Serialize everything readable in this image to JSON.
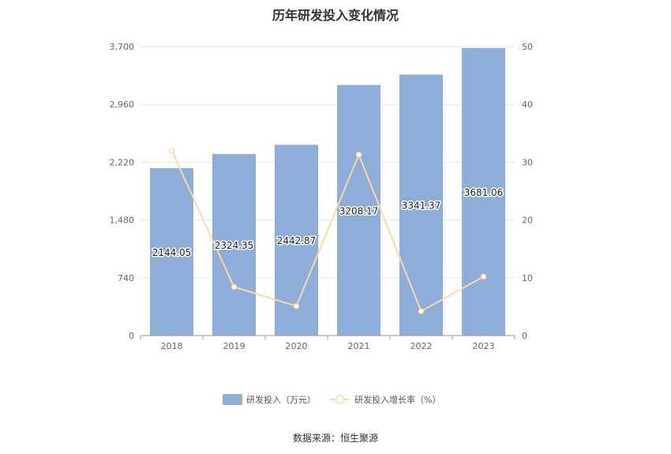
{
  "title": "历年研发投入变化情况",
  "source": "数据来源：恒生聚源",
  "colors": {
    "bar": "#8eadd9",
    "line": "#fbd9a2",
    "grid": "#e6e6e6",
    "axis": "#999999"
  },
  "chart_data": {
    "type": "bar",
    "categories": [
      "2018",
      "2019",
      "2020",
      "2021",
      "2022",
      "2023"
    ],
    "series": [
      {
        "name": "研发投入（万元）",
        "type": "bar",
        "axis": "left",
        "values": [
          2144.05,
          2324.35,
          2442.87,
          3208.17,
          3341.37,
          3681.06
        ],
        "labels": [
          "2144.05",
          "2324.35",
          "2442.87",
          "3208.17",
          "3341.37",
          "3681.06"
        ]
      },
      {
        "name": "研发投入增长率（%）",
        "type": "line",
        "axis": "right",
        "values": [
          32.0,
          8.4,
          5.1,
          31.3,
          4.2,
          10.2
        ]
      }
    ],
    "y_left": {
      "ticks": [
        "0",
        "740",
        "1,480",
        "2,220",
        "2,960",
        "3,700"
      ],
      "tick_values": [
        0,
        740,
        1480,
        2220,
        2960,
        3700
      ],
      "ylim": [
        0,
        3700
      ]
    },
    "y_right": {
      "ticks": [
        "0",
        "10",
        "20",
        "30",
        "40",
        "50"
      ],
      "tick_values": [
        0,
        10,
        20,
        30,
        40,
        50
      ],
      "ylim": [
        0,
        50
      ]
    },
    "grid": true,
    "legend_position": "bottom"
  }
}
